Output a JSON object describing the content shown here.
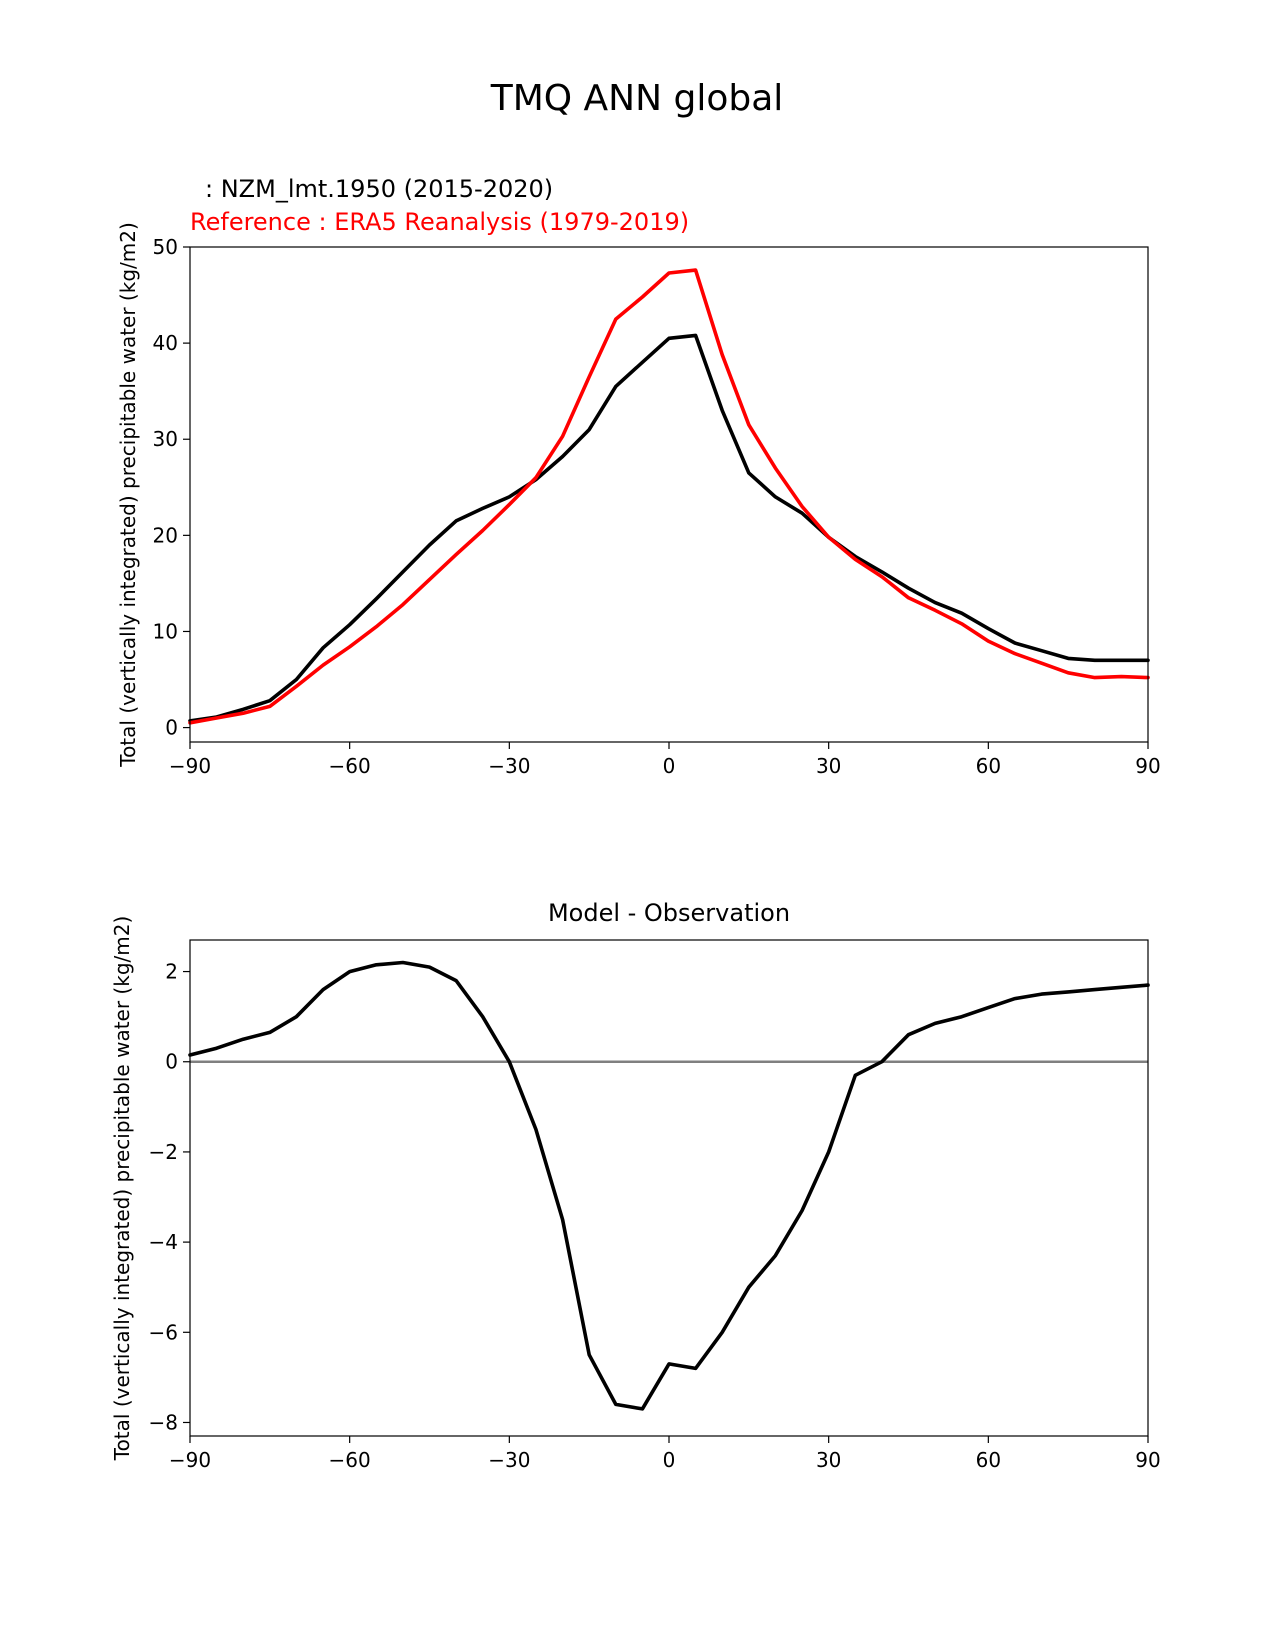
{
  "figure": {
    "title": "TMQ ANN global"
  },
  "chart_data": [
    {
      "type": "line",
      "test_label": ": NZM_lmt.1950 (2015-2020)",
      "ref_label": "Reference : ERA5 Reanalysis (1979-2019)",
      "title": "",
      "xlabel": "",
      "ylabel": "Total (vertically integrated) precipitable water (kg/m2)",
      "xlim": [
        -90,
        90
      ],
      "ylim": [
        -1.5,
        50
      ],
      "xticks": [
        -90,
        -60,
        -30,
        0,
        30,
        60,
        90
      ],
      "xtick_labels": [
        "−90",
        "−60",
        "−30",
        "0",
        "30",
        "60",
        "90"
      ],
      "yticks": [
        0,
        10,
        20,
        30,
        40,
        50
      ],
      "ytick_labels": [
        "0",
        "10",
        "20",
        "30",
        "40",
        "50"
      ],
      "x": [
        -90,
        -85,
        -80,
        -75,
        -70,
        -65,
        -60,
        -55,
        -50,
        -45,
        -40,
        -35,
        -30,
        -25,
        -20,
        -15,
        -10,
        -5,
        0,
        5,
        10,
        15,
        20,
        25,
        30,
        35,
        40,
        45,
        50,
        55,
        60,
        65,
        70,
        75,
        80,
        85,
        90
      ],
      "series": [
        {
          "name": "NZM_lmt.1950 (2015-2020)",
          "color": "#000000",
          "values": [
            0.7,
            1.1,
            1.9,
            2.8,
            5.0,
            8.3,
            10.7,
            13.4,
            16.2,
            19.0,
            21.5,
            22.8,
            24.0,
            25.8,
            28.2,
            31.0,
            35.5,
            38.0,
            40.5,
            40.8,
            33.0,
            26.5,
            24.0,
            22.3,
            19.8,
            17.8,
            16.2,
            14.5,
            13.0,
            11.9,
            10.3,
            8.8,
            8.0,
            7.2,
            7.0,
            7.0,
            7.0
          ]
        },
        {
          "name": "ERA5 Reanalysis (1979-2019)",
          "color": "#ff0000",
          "values": [
            0.5,
            1.0,
            1.5,
            2.2,
            4.3,
            6.5,
            8.4,
            10.5,
            12.8,
            15.4,
            18.0,
            20.5,
            23.2,
            26.0,
            30.3,
            36.5,
            42.5,
            44.8,
            47.3,
            47.6,
            38.8,
            31.5,
            27.0,
            23.0,
            19.8,
            17.5,
            15.7,
            13.5,
            12.2,
            10.8,
            9.0,
            7.7,
            6.7,
            5.7,
            5.2,
            5.3,
            5.2
          ]
        }
      ]
    },
    {
      "type": "line",
      "title": "Model - Observation",
      "xlabel": "",
      "ylabel": "Total (vertically integrated) precipitable water (kg/m2)",
      "xlim": [
        -90,
        90
      ],
      "ylim": [
        -8.3,
        2.7
      ],
      "xticks": [
        -90,
        -60,
        -30,
        0,
        30,
        60,
        90
      ],
      "xtick_labels": [
        "−90",
        "−60",
        "−30",
        "0",
        "30",
        "60",
        "90"
      ],
      "yticks": [
        -8,
        -6,
        -4,
        -2,
        0,
        2
      ],
      "ytick_labels": [
        "−8",
        "−6",
        "−4",
        "−2",
        "0",
        "2"
      ],
      "reference_line": {
        "y": 0,
        "color": "#808080"
      },
      "x": [
        -90,
        -85,
        -80,
        -75,
        -70,
        -65,
        -60,
        -55,
        -50,
        -45,
        -40,
        -35,
        -30,
        -25,
        -20,
        -15,
        -10,
        -5,
        0,
        5,
        10,
        15,
        20,
        25,
        30,
        35,
        40,
        45,
        50,
        55,
        60,
        65,
        70,
        75,
        80,
        85,
        90
      ],
      "series": [
        {
          "name": "Model - Observation",
          "color": "#000000",
          "values": [
            0.15,
            0.3,
            0.5,
            0.65,
            1.0,
            1.6,
            2.0,
            2.15,
            2.2,
            2.1,
            1.8,
            1.0,
            0.0,
            -1.5,
            -3.5,
            -6.5,
            -7.6,
            -7.7,
            -6.7,
            -6.8,
            -6.0,
            -5.0,
            -4.3,
            -3.3,
            -2.0,
            -0.3,
            0.0,
            0.6,
            0.85,
            1.0,
            1.2,
            1.4,
            1.5,
            1.55,
            1.6,
            1.65,
            1.7
          ]
        }
      ]
    }
  ]
}
